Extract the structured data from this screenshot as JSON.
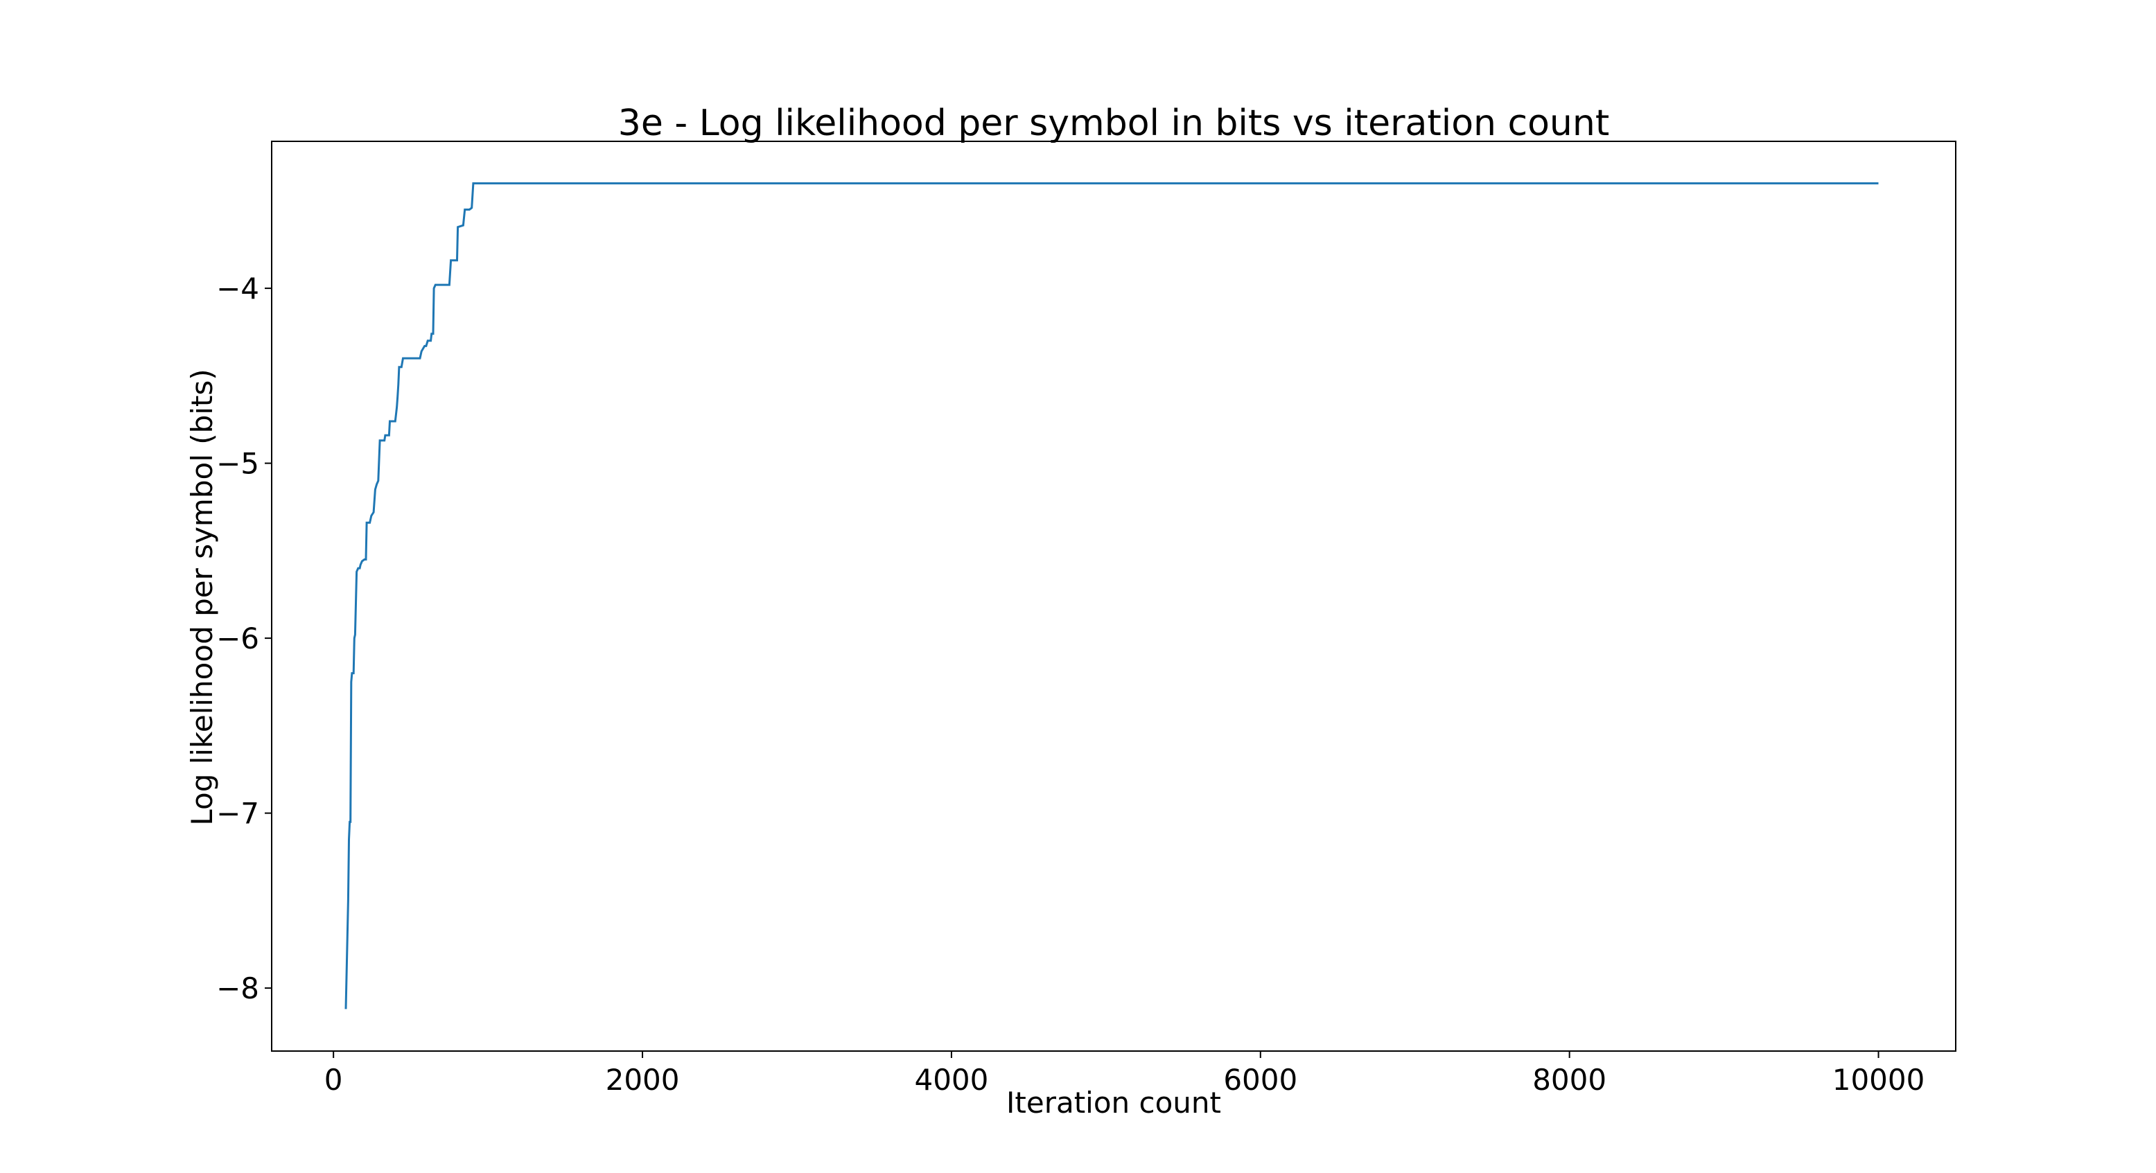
{
  "chart_data": {
    "type": "line",
    "title": "3e - Log likelihood per symbol in bits vs iteration count",
    "xlabel": "Iteration count",
    "ylabel": "Log likelihood per symbol (bits)",
    "xlim": [
      -400,
      10500
    ],
    "ylim": [
      -8.36,
      -3.16
    ],
    "xticks": [
      0,
      2000,
      4000,
      6000,
      8000,
      10000
    ],
    "xtick_labels": [
      "0",
      "2000",
      "4000",
      "6000",
      "8000",
      "10000"
    ],
    "yticks": [
      -8,
      -7,
      -6,
      -5,
      -4
    ],
    "ytick_labels": [
      "−8",
      "−7",
      "−6",
      "−5",
      "−4"
    ],
    "grid": false,
    "series": [
      {
        "color": "#1f77b4",
        "points": [
          [
            80,
            -8.12
          ],
          [
            95,
            -7.5
          ],
          [
            100,
            -7.15
          ],
          [
            105,
            -7.05
          ],
          [
            110,
            -7.05
          ],
          [
            115,
            -6.25
          ],
          [
            120,
            -6.2
          ],
          [
            130,
            -6.2
          ],
          [
            135,
            -6.0
          ],
          [
            140,
            -5.98
          ],
          [
            150,
            -5.62
          ],
          [
            160,
            -5.6
          ],
          [
            170,
            -5.6
          ],
          [
            175,
            -5.58
          ],
          [
            185,
            -5.56
          ],
          [
            200,
            -5.55
          ],
          [
            210,
            -5.55
          ],
          [
            215,
            -5.34
          ],
          [
            235,
            -5.34
          ],
          [
            245,
            -5.3
          ],
          [
            260,
            -5.28
          ],
          [
            270,
            -5.15
          ],
          [
            280,
            -5.12
          ],
          [
            290,
            -5.1
          ],
          [
            300,
            -4.87
          ],
          [
            330,
            -4.87
          ],
          [
            335,
            -4.84
          ],
          [
            360,
            -4.84
          ],
          [
            365,
            -4.76
          ],
          [
            400,
            -4.76
          ],
          [
            410,
            -4.68
          ],
          [
            415,
            -4.62
          ],
          [
            420,
            -4.55
          ],
          [
            425,
            -4.45
          ],
          [
            440,
            -4.45
          ],
          [
            450,
            -4.4
          ],
          [
            560,
            -4.4
          ],
          [
            570,
            -4.36
          ],
          [
            590,
            -4.33
          ],
          [
            600,
            -4.33
          ],
          [
            610,
            -4.3
          ],
          [
            630,
            -4.3
          ],
          [
            635,
            -4.26
          ],
          [
            645,
            -4.26
          ],
          [
            650,
            -4.0
          ],
          [
            660,
            -3.98
          ],
          [
            750,
            -3.98
          ],
          [
            760,
            -3.84
          ],
          [
            800,
            -3.84
          ],
          [
            805,
            -3.65
          ],
          [
            840,
            -3.64
          ],
          [
            850,
            -3.55
          ],
          [
            880,
            -3.55
          ],
          [
            895,
            -3.54
          ],
          [
            905,
            -3.4
          ],
          [
            10000,
            -3.4
          ]
        ]
      }
    ]
  }
}
